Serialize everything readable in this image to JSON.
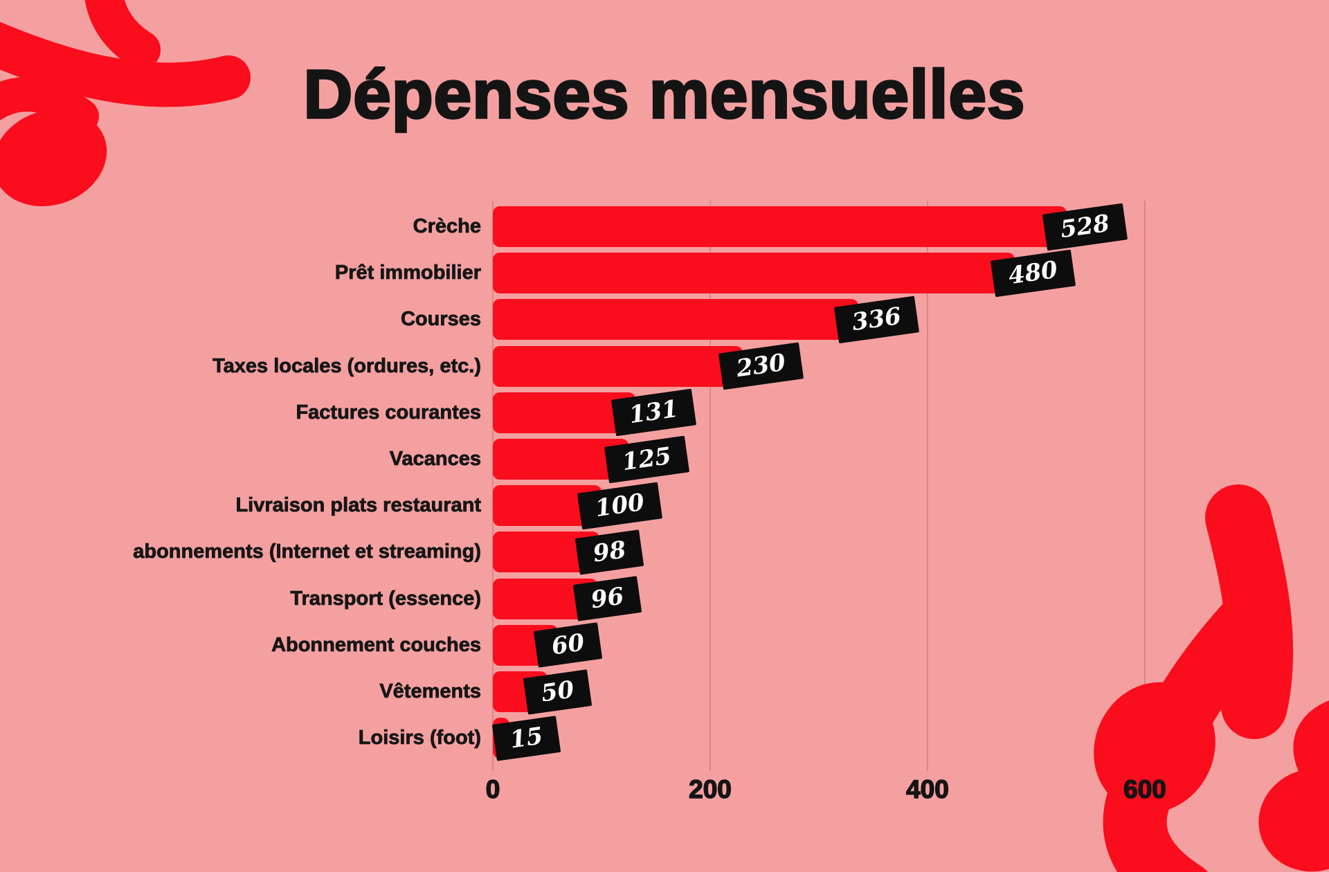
{
  "page": {
    "background_color": "#F5A0A0",
    "accent_red": "#FA0D1D",
    "text_black": "#141414",
    "badge_background": "#0D0D0D",
    "badge_text_color": "#FFFFFF"
  },
  "chart_data": {
    "type": "bar",
    "orientation": "horizontal",
    "title": "Dépenses mensuelles",
    "categories": [
      "Crèche",
      "Prêt immobilier",
      "Courses",
      "Taxes locales (ordures, etc.)",
      "Factures courantes",
      "Vacances",
      "Livraison plats restaurant",
      "abonnements (Internet et streaming)",
      "Transport (essence)",
      "Abonnement couches",
      "Vêtements",
      "Loisirs (foot)"
    ],
    "values": [
      528,
      480,
      336,
      230,
      131,
      125,
      100,
      98,
      96,
      60,
      50,
      15
    ],
    "x_ticks": [
      "0",
      "200",
      "400",
      "600"
    ],
    "x_tick_values": [
      0,
      200,
      400,
      600
    ],
    "xlim": [
      0,
      600
    ],
    "grid": "vertical",
    "legend": "none",
    "bar_color": "#FA0D1D",
    "value_labels": "on-bar-end-black-tilted-badges"
  }
}
